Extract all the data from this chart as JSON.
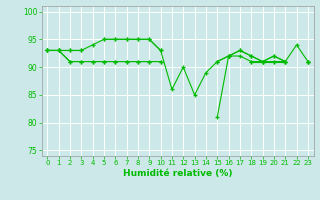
{
  "x": [
    0,
    1,
    2,
    3,
    4,
    5,
    6,
    7,
    8,
    9,
    10,
    11,
    12,
    13,
    14,
    15,
    16,
    17,
    18,
    19,
    20,
    21,
    22,
    23
  ],
  "line1": [
    93,
    93,
    93,
    93,
    94,
    95,
    95,
    95,
    95,
    95,
    93,
    86,
    90,
    85,
    89,
    91,
    92,
    93,
    92,
    91,
    92,
    91,
    94,
    91
  ],
  "line2": [
    93,
    93,
    93,
    93,
    null,
    95,
    95,
    95,
    95,
    95,
    93,
    null,
    null,
    null,
    null,
    91,
    92,
    93,
    92,
    91,
    92,
    91,
    null,
    91
  ],
  "line3": [
    93,
    93,
    91,
    91,
    91,
    91,
    91,
    91,
    91,
    91,
    91,
    null,
    null,
    null,
    null,
    81,
    92,
    92,
    91,
    91,
    91,
    91,
    null,
    91
  ],
  "line4": [
    93,
    93,
    91,
    91,
    91,
    91,
    91,
    91,
    91,
    91,
    91,
    null,
    null,
    null,
    null,
    null,
    92,
    null,
    91,
    91,
    91,
    91,
    null,
    91
  ],
  "bg_color": "#cce8e8",
  "grid_color": "#b8d8d8",
  "line_color": "#00bb00",
  "xlabel": "Humidité relative (%)",
  "ylim": [
    74,
    101
  ],
  "yticks": [
    75,
    80,
    85,
    90,
    95,
    100
  ],
  "xticks": [
    0,
    1,
    2,
    3,
    4,
    5,
    6,
    7,
    8,
    9,
    10,
    11,
    12,
    13,
    14,
    15,
    16,
    17,
    18,
    19,
    20,
    21,
    22,
    23
  ]
}
